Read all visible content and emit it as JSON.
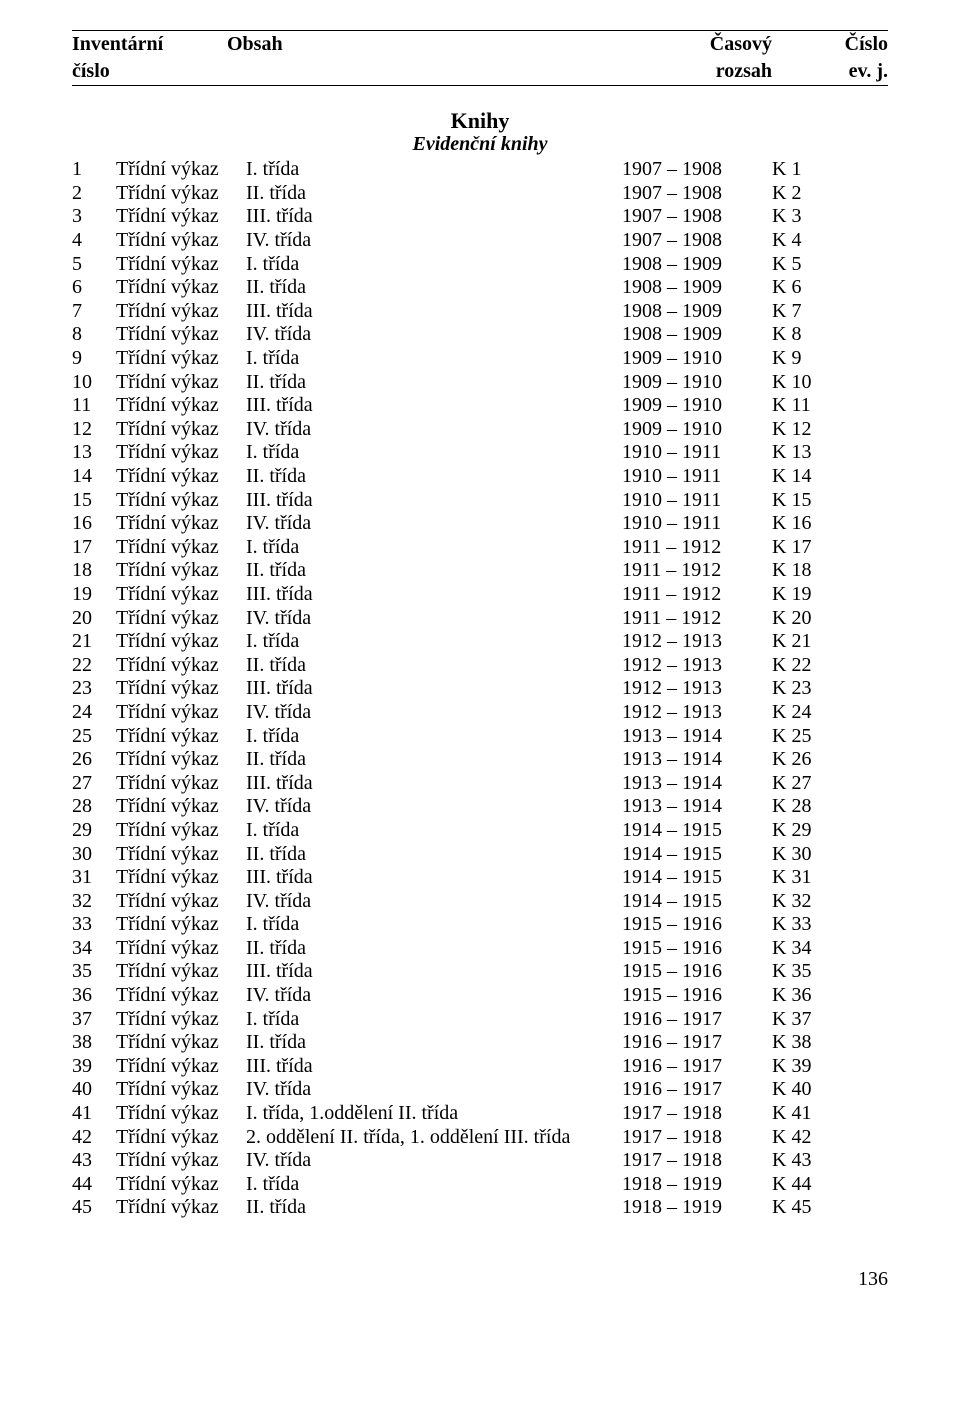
{
  "header": {
    "col1_line1": "Inventární",
    "col1_line2": "číslo",
    "col2_line1": "Obsah",
    "col3_line1": "Časový",
    "col3_line2": "rozsah",
    "col4_line1": "Číslo",
    "col4_line2": "ev. j."
  },
  "section": {
    "title": "Knihy",
    "subtitle": "Evidenční knihy"
  },
  "label": "Třídní výkaz",
  "rows": [
    {
      "inv": "1",
      "desc": "I. třída",
      "time": "1907 – 1908",
      "ev": "K 1"
    },
    {
      "inv": "2",
      "desc": "II. třída",
      "time": "1907 – 1908",
      "ev": "K 2"
    },
    {
      "inv": "3",
      "desc": "III. třída",
      "time": "1907 – 1908",
      "ev": "K 3"
    },
    {
      "inv": "4",
      "desc": "IV. třída",
      "time": "1907 – 1908",
      "ev": "K 4"
    },
    {
      "inv": "5",
      "desc": "I. třída",
      "time": "1908 – 1909",
      "ev": "K 5"
    },
    {
      "inv": "6",
      "desc": "II. třída",
      "time": "1908 – 1909",
      "ev": "K 6"
    },
    {
      "inv": "7",
      "desc": "III. třída",
      "time": "1908 – 1909",
      "ev": "K 7"
    },
    {
      "inv": "8",
      "desc": "IV. třída",
      "time": "1908 – 1909",
      "ev": "K 8"
    },
    {
      "inv": "9",
      "desc": "I. třída",
      "time": "1909 – 1910",
      "ev": "K 9"
    },
    {
      "inv": "10",
      "desc": "II. třída",
      "time": "1909 – 1910",
      "ev": "K 10"
    },
    {
      "inv": "11",
      "desc": "III. třída",
      "time": "1909 – 1910",
      "ev": "K 11"
    },
    {
      "inv": "12",
      "desc": "IV. třída",
      "time": "1909 – 1910",
      "ev": "K 12"
    },
    {
      "inv": "13",
      "desc": "I. třída",
      "time": "1910 – 1911",
      "ev": "K 13"
    },
    {
      "inv": "14",
      "desc": "II. třída",
      "time": "1910 – 1911",
      "ev": "K 14"
    },
    {
      "inv": "15",
      "desc": "III. třída",
      "time": "1910 – 1911",
      "ev": "K 15"
    },
    {
      "inv": "16",
      "desc": "IV. třída",
      "time": "1910 – 1911",
      "ev": "K 16"
    },
    {
      "inv": "17",
      "desc": "I. třída",
      "time": "1911 – 1912",
      "ev": "K 17"
    },
    {
      "inv": "18",
      "desc": "II. třída",
      "time": "1911 – 1912",
      "ev": "K 18"
    },
    {
      "inv": "19",
      "desc": "III. třída",
      "time": "1911 – 1912",
      "ev": "K 19"
    },
    {
      "inv": "20",
      "desc": "IV. třída",
      "time": "1911 – 1912",
      "ev": "K 20"
    },
    {
      "inv": "21",
      "desc": "I. třída",
      "time": "1912 – 1913",
      "ev": "K 21"
    },
    {
      "inv": "22",
      "desc": "II. třída",
      "time": "1912 – 1913",
      "ev": "K 22"
    },
    {
      "inv": "23",
      "desc": "III. třída",
      "time": "1912 – 1913",
      "ev": "K 23"
    },
    {
      "inv": "24",
      "desc": "IV. třída",
      "time": "1912 – 1913",
      "ev": "K 24"
    },
    {
      "inv": "25",
      "desc": "I. třída",
      "time": "1913 – 1914",
      "ev": "K 25"
    },
    {
      "inv": "26",
      "desc": "II. třída",
      "time": "1913 – 1914",
      "ev": "K 26"
    },
    {
      "inv": "27",
      "desc": "III. třída",
      "time": "1913 – 1914",
      "ev": "K 27"
    },
    {
      "inv": "28",
      "desc": "IV. třída",
      "time": "1913 – 1914",
      "ev": "K 28"
    },
    {
      "inv": "29",
      "desc": "I. třída",
      "time": "1914 – 1915",
      "ev": "K 29"
    },
    {
      "inv": "30",
      "desc": "II. třída",
      "time": "1914 – 1915",
      "ev": "K 30"
    },
    {
      "inv": "31",
      "desc": "III. třída",
      "time": "1914 – 1915",
      "ev": "K 31"
    },
    {
      "inv": "32",
      "desc": "IV. třída",
      "time": "1914 – 1915",
      "ev": "K 32"
    },
    {
      "inv": "33",
      "desc": "I. třída",
      "time": "1915 – 1916",
      "ev": "K 33"
    },
    {
      "inv": "34",
      "desc": "II. třída",
      "time": "1915 – 1916",
      "ev": "K 34"
    },
    {
      "inv": "35",
      "desc": "III. třída",
      "time": "1915 – 1916",
      "ev": "K 35"
    },
    {
      "inv": "36",
      "desc": "IV. třída",
      "time": "1915 – 1916",
      "ev": "K 36"
    },
    {
      "inv": "37",
      "desc": "I. třída",
      "time": "1916 – 1917",
      "ev": "K 37"
    },
    {
      "inv": "38",
      "desc": "II. třída",
      "time": "1916 – 1917",
      "ev": "K 38"
    },
    {
      "inv": "39",
      "desc": "III. třída",
      "time": "1916 – 1917",
      "ev": "K 39"
    },
    {
      "inv": "40",
      "desc": "IV. třída",
      "time": "1916 – 1917",
      "ev": "K 40"
    },
    {
      "inv": "41",
      "desc": "I. třída, 1.oddělení II. třída",
      "time": "1917 – 1918",
      "ev": "K 41"
    },
    {
      "inv": "42",
      "desc": "2. oddělení II. třída, 1. oddělení III. třída",
      "time": "1917 – 1918",
      "ev": "K 42"
    },
    {
      "inv": "43",
      "desc": "IV. třída",
      "time": "1917 – 1918",
      "ev": "K 43"
    },
    {
      "inv": "44",
      "desc": "I. třída",
      "time": "1918 – 1919",
      "ev": "K 44"
    },
    {
      "inv": "45",
      "desc": "II. třída",
      "time": "1918 – 1919",
      "ev": "K 45"
    }
  ],
  "page_number": "136"
}
